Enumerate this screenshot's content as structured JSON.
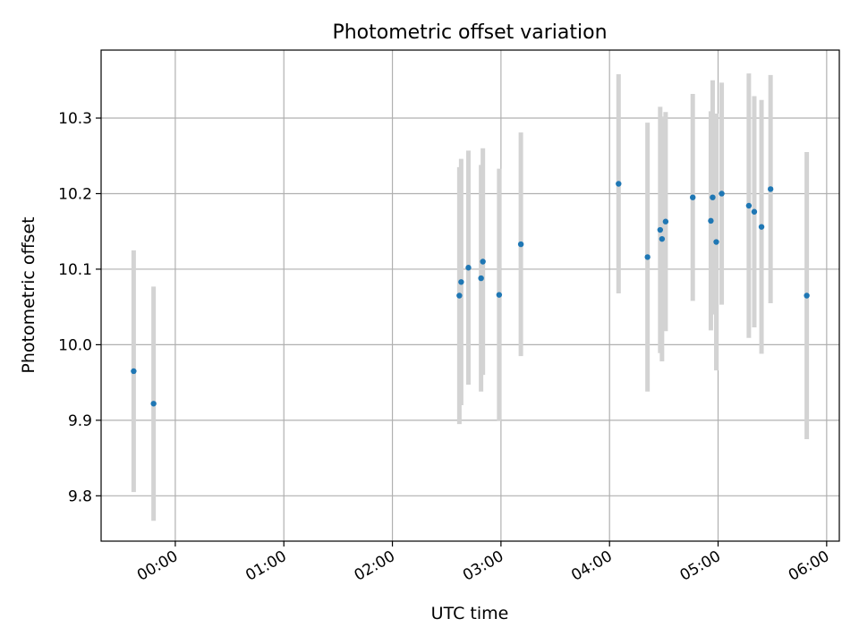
{
  "chart_data": {
    "type": "scatter",
    "title": "Photometric offset variation",
    "xlabel": "UTC time",
    "ylabel": "Photometric offset",
    "grid": true,
    "x_tick_labels": [
      "00:00",
      "01:00",
      "02:00",
      "03:00",
      "04:00",
      "05:00",
      "06:00"
    ],
    "y_tick_labels": [
      "9.8",
      "9.9",
      "10.0",
      "10.1",
      "10.2",
      "10.3"
    ],
    "xlim": [
      "-00:41",
      "06:07"
    ],
    "ylim": [
      9.74,
      10.39
    ],
    "colors": {
      "point": "#1f77b4",
      "errorbar": "#d3d3d3",
      "grid": "#b0b0b0"
    },
    "series": [
      {
        "points": [
          {
            "x": "-00:23",
            "y": 9.965,
            "err": 0.16
          },
          {
            "x": "-00:12",
            "y": 9.922,
            "err": 0.155
          },
          {
            "x": "02:37",
            "y": 10.065,
            "err": 0.17
          },
          {
            "x": "02:38",
            "y": 10.083,
            "err": 0.163
          },
          {
            "x": "02:42",
            "y": 10.102,
            "err": 0.155
          },
          {
            "x": "02:49",
            "y": 10.088,
            "err": 0.15
          },
          {
            "x": "02:50",
            "y": 10.11,
            "err": 0.15
          },
          {
            "x": "02:59",
            "y": 10.066,
            "err": 0.167
          },
          {
            "x": "03:11",
            "y": 10.133,
            "err": 0.148
          },
          {
            "x": "04:05",
            "y": 10.213,
            "err": 0.145
          },
          {
            "x": "04:21",
            "y": 10.116,
            "err": 0.178
          },
          {
            "x": "04:28",
            "y": 10.152,
            "err": 0.163
          },
          {
            "x": "04:29",
            "y": 10.14,
            "err": 0.162
          },
          {
            "x": "04:31",
            "y": 10.163,
            "err": 0.145
          },
          {
            "x": "04:46",
            "y": 10.195,
            "err": 0.137
          },
          {
            "x": "04:56",
            "y": 10.164,
            "err": 0.145
          },
          {
            "x": "04:57",
            "y": 10.195,
            "err": 0.155
          },
          {
            "x": "04:59",
            "y": 10.136,
            "err": 0.17
          },
          {
            "x": "05:02",
            "y": 10.2,
            "err": 0.147
          },
          {
            "x": "05:17",
            "y": 10.184,
            "err": 0.175
          },
          {
            "x": "05:20",
            "y": 10.176,
            "err": 0.153
          },
          {
            "x": "05:24",
            "y": 10.156,
            "err": 0.168
          },
          {
            "x": "05:29",
            "y": 10.206,
            "err": 0.151
          },
          {
            "x": "05:49",
            "y": 10.065,
            "err": 0.19
          }
        ]
      }
    ]
  }
}
